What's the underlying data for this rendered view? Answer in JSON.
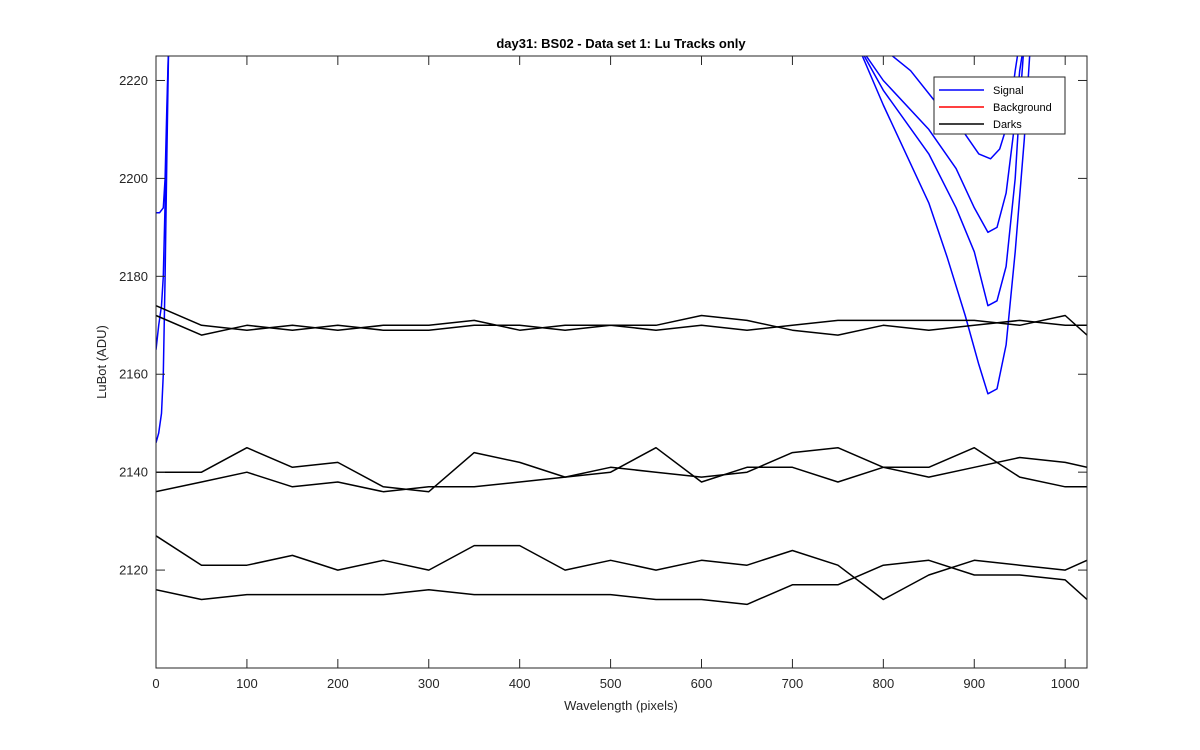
{
  "chart_data": {
    "type": "line",
    "title": "day31: BS02 - Data set 1: Lu Tracks only",
    "xlabel": "Wavelength (pixels)",
    "ylabel": "LuBot (ADU)",
    "xlim": [
      0,
      1024
    ],
    "ylim": [
      2100,
      2225
    ],
    "xticks": [
      0,
      100,
      200,
      300,
      400,
      500,
      600,
      700,
      800,
      900,
      1000
    ],
    "yticks": [
      2120,
      2140,
      2160,
      2180,
      2200,
      2220
    ],
    "grid": false,
    "legend": {
      "position": "top-right",
      "entries": [
        {
          "label": "Signal",
          "color": "#0000ff"
        },
        {
          "label": "Background",
          "color": "#ff0000"
        },
        {
          "label": "Darks",
          "color": "#000000"
        }
      ]
    },
    "series": [
      {
        "name": "Signal",
        "color": "#0000ff",
        "points": [
          [
            0,
            2193
          ],
          [
            4,
            2193
          ],
          [
            8,
            2194
          ],
          [
            10,
            2200
          ],
          [
            12,
            2215
          ],
          [
            14,
            2228
          ]
        ]
      },
      {
        "name": "Signal",
        "color": "#0000ff",
        "points": [
          [
            0,
            2165
          ],
          [
            3,
            2170
          ],
          [
            6,
            2174
          ],
          [
            8,
            2180
          ],
          [
            10,
            2195
          ],
          [
            12,
            2212
          ],
          [
            14,
            2228
          ]
        ]
      },
      {
        "name": "Signal",
        "color": "#0000ff",
        "points": [
          [
            0,
            2146
          ],
          [
            3,
            2148
          ],
          [
            6,
            2152
          ],
          [
            8,
            2160
          ],
          [
            10,
            2180
          ],
          [
            12,
            2205
          ],
          [
            14,
            2228
          ]
        ]
      },
      {
        "name": "Signal",
        "color": "#0000ff",
        "points": [
          [
            770,
            2228
          ],
          [
            800,
            2218
          ],
          [
            850,
            2205
          ],
          [
            880,
            2194
          ],
          [
            900,
            2185
          ],
          [
            915,
            2174
          ],
          [
            925,
            2175
          ],
          [
            935,
            2182
          ],
          [
            945,
            2200
          ],
          [
            950,
            2215
          ],
          [
            955,
            2228
          ]
        ]
      },
      {
        "name": "Signal",
        "color": "#0000ff",
        "points": [
          [
            770,
            2228
          ],
          [
            800,
            2220
          ],
          [
            850,
            2210
          ],
          [
            880,
            2202
          ],
          [
            900,
            2194
          ],
          [
            915,
            2189
          ],
          [
            925,
            2190
          ],
          [
            935,
            2197
          ],
          [
            945,
            2212
          ],
          [
            950,
            2222
          ],
          [
            955,
            2228
          ]
        ]
      },
      {
        "name": "Signal",
        "color": "#0000ff",
        "points": [
          [
            790,
            2228
          ],
          [
            830,
            2222
          ],
          [
            860,
            2215
          ],
          [
            890,
            2209
          ],
          [
            905,
            2205
          ],
          [
            918,
            2204
          ],
          [
            928,
            2206
          ],
          [
            938,
            2212
          ],
          [
            945,
            2222
          ],
          [
            950,
            2228
          ]
        ]
      },
      {
        "name": "Signal",
        "color": "#0000ff",
        "points": [
          [
            770,
            2228
          ],
          [
            800,
            2215
          ],
          [
            850,
            2195
          ],
          [
            870,
            2184
          ],
          [
            890,
            2172
          ],
          [
            905,
            2162
          ],
          [
            915,
            2156
          ],
          [
            925,
            2157
          ],
          [
            935,
            2166
          ],
          [
            945,
            2185
          ],
          [
            955,
            2208
          ],
          [
            962,
            2228
          ]
        ]
      },
      {
        "name": "Darks",
        "color": "#000000",
        "points": [
          [
            0,
            2174
          ],
          [
            50,
            2170
          ],
          [
            100,
            2169
          ],
          [
            150,
            2170
          ],
          [
            200,
            2169
          ],
          [
            250,
            2170
          ],
          [
            300,
            2170
          ],
          [
            350,
            2171
          ],
          [
            400,
            2169
          ],
          [
            450,
            2170
          ],
          [
            500,
            2170
          ],
          [
            550,
            2170
          ],
          [
            600,
            2172
          ],
          [
            650,
            2171
          ],
          [
            700,
            2169
          ],
          [
            750,
            2168
          ],
          [
            800,
            2170
          ],
          [
            850,
            2169
          ],
          [
            900,
            2170
          ],
          [
            950,
            2171
          ],
          [
            1000,
            2170
          ],
          [
            1024,
            2170
          ]
        ]
      },
      {
        "name": "Darks",
        "color": "#000000",
        "points": [
          [
            0,
            2172
          ],
          [
            50,
            2168
          ],
          [
            100,
            2170
          ],
          [
            150,
            2169
          ],
          [
            200,
            2170
          ],
          [
            250,
            2169
          ],
          [
            300,
            2169
          ],
          [
            350,
            2170
          ],
          [
            400,
            2170
          ],
          [
            450,
            2169
          ],
          [
            500,
            2170
          ],
          [
            550,
            2169
          ],
          [
            600,
            2170
          ],
          [
            650,
            2169
          ],
          [
            700,
            2170
          ],
          [
            750,
            2171
          ],
          [
            800,
            2171
          ],
          [
            850,
            2171
          ],
          [
            900,
            2171
          ],
          [
            950,
            2170
          ],
          [
            1000,
            2172
          ],
          [
            1024,
            2168
          ]
        ]
      },
      {
        "name": "Darks",
        "color": "#000000",
        "points": [
          [
            0,
            2140
          ],
          [
            50,
            2140
          ],
          [
            100,
            2145
          ],
          [
            150,
            2141
          ],
          [
            200,
            2142
          ],
          [
            250,
            2137
          ],
          [
            300,
            2136
          ],
          [
            350,
            2144
          ],
          [
            400,
            2142
          ],
          [
            450,
            2139
          ],
          [
            500,
            2141
          ],
          [
            550,
            2140
          ],
          [
            600,
            2139
          ],
          [
            650,
            2140
          ],
          [
            700,
            2144
          ],
          [
            750,
            2145
          ],
          [
            800,
            2141
          ],
          [
            850,
            2139
          ],
          [
            900,
            2141
          ],
          [
            950,
            2143
          ],
          [
            1000,
            2142
          ],
          [
            1024,
            2141
          ]
        ]
      },
      {
        "name": "Darks",
        "color": "#000000",
        "points": [
          [
            0,
            2136
          ],
          [
            50,
            2138
          ],
          [
            100,
            2140
          ],
          [
            150,
            2137
          ],
          [
            200,
            2138
          ],
          [
            250,
            2136
          ],
          [
            300,
            2137
          ],
          [
            350,
            2137
          ],
          [
            400,
            2138
          ],
          [
            450,
            2139
          ],
          [
            500,
            2140
          ],
          [
            550,
            2145
          ],
          [
            600,
            2138
          ],
          [
            650,
            2141
          ],
          [
            700,
            2141
          ],
          [
            750,
            2138
          ],
          [
            800,
            2141
          ],
          [
            850,
            2141
          ],
          [
            900,
            2145
          ],
          [
            950,
            2139
          ],
          [
            1000,
            2137
          ],
          [
            1024,
            2137
          ]
        ]
      },
      {
        "name": "Darks",
        "color": "#000000",
        "points": [
          [
            0,
            2127
          ],
          [
            50,
            2121
          ],
          [
            100,
            2121
          ],
          [
            150,
            2123
          ],
          [
            200,
            2120
          ],
          [
            250,
            2122
          ],
          [
            300,
            2120
          ],
          [
            350,
            2125
          ],
          [
            400,
            2125
          ],
          [
            450,
            2120
          ],
          [
            500,
            2122
          ],
          [
            550,
            2120
          ],
          [
            600,
            2122
          ],
          [
            650,
            2121
          ],
          [
            700,
            2124
          ],
          [
            750,
            2121
          ],
          [
            800,
            2114
          ],
          [
            850,
            2119
          ],
          [
            900,
            2122
          ],
          [
            950,
            2121
          ],
          [
            1000,
            2120
          ],
          [
            1024,
            2122
          ]
        ]
      },
      {
        "name": "Darks",
        "color": "#000000",
        "points": [
          [
            0,
            2116
          ],
          [
            50,
            2114
          ],
          [
            100,
            2115
          ],
          [
            150,
            2115
          ],
          [
            200,
            2115
          ],
          [
            250,
            2115
          ],
          [
            300,
            2116
          ],
          [
            350,
            2115
          ],
          [
            400,
            2115
          ],
          [
            450,
            2115
          ],
          [
            500,
            2115
          ],
          [
            550,
            2114
          ],
          [
            600,
            2114
          ],
          [
            650,
            2113
          ],
          [
            700,
            2117
          ],
          [
            750,
            2117
          ],
          [
            800,
            2121
          ],
          [
            850,
            2122
          ],
          [
            900,
            2119
          ],
          [
            950,
            2119
          ],
          [
            1000,
            2118
          ],
          [
            1024,
            2114
          ]
        ]
      }
    ]
  }
}
